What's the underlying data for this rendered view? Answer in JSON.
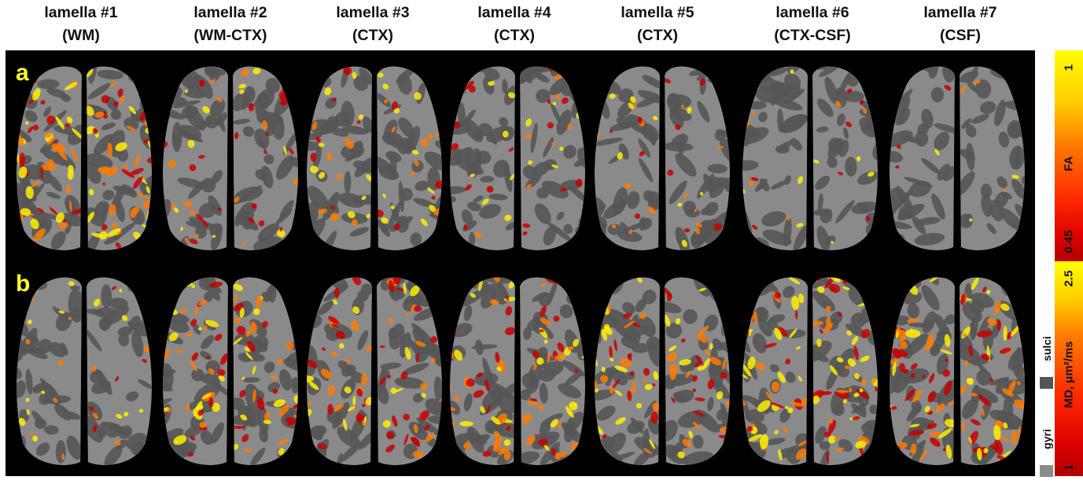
{
  "columns": [
    {
      "title": "lamella #1",
      "subtitle": "(WM)"
    },
    {
      "title": "lamella #2",
      "subtitle": "(WM-CTX)"
    },
    {
      "title": "lamella #3",
      "subtitle": "(CTX)"
    },
    {
      "title": "lamella #4",
      "subtitle": "(CTX)"
    },
    {
      "title": "lamella #5",
      "subtitle": "(CTX)"
    },
    {
      "title": "lamella #6",
      "subtitle": "(CTX-CSF)"
    },
    {
      "title": "lamella #7",
      "subtitle": "(CSF)"
    }
  ],
  "panels": {
    "a": {
      "letter": "a",
      "activation_levels": [
        0.9,
        0.45,
        0.45,
        0.35,
        0.3,
        0.2,
        0.1
      ]
    },
    "b": {
      "letter": "b",
      "activation_levels": [
        0.25,
        0.8,
        0.7,
        0.75,
        0.75,
        0.9,
        0.95
      ]
    }
  },
  "colorbars": {
    "fa": {
      "top_value": "1",
      "bottom_value": "0.45",
      "label": "FA"
    },
    "md": {
      "top_value": "2.5",
      "bottom_value": "1",
      "label": "MD, μm²/ms"
    }
  },
  "legend": {
    "sulci": "sulci",
    "gyri": "gyri",
    "sulci_color": "#555555",
    "gyri_color": "#8a8a8a"
  },
  "colors": {
    "background": "#000000",
    "label_yellow": "#ffff33",
    "hot_low": "#c80000",
    "hot_high": "#ffee00"
  }
}
